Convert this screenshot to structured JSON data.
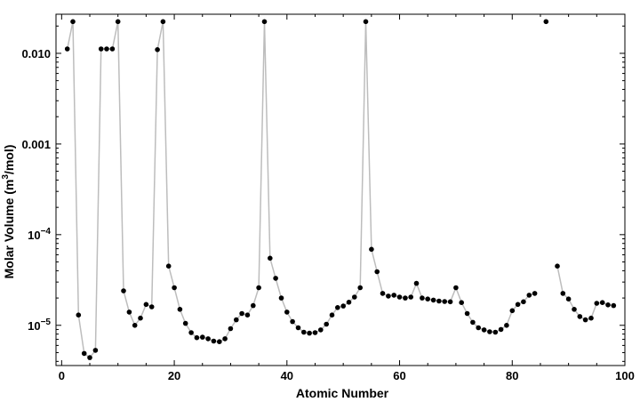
{
  "chart_data": {
    "type": "line",
    "title": "",
    "xlabel": "Atomic Number",
    "ylabel_main": "Molar Volume (m",
    "ylabel_sup": "3",
    "ylabel_end": "/mol)",
    "xlim": [
      -1,
      100
    ],
    "ylim": [
      3.6e-06,
      0.027
    ],
    "yscale": "log",
    "grid": false,
    "legend": "none",
    "x_ticks": [
      {
        "value": 0,
        "label": "0"
      },
      {
        "value": 20,
        "label": "20"
      },
      {
        "value": 40,
        "label": "40"
      },
      {
        "value": 60,
        "label": "60"
      },
      {
        "value": 80,
        "label": "80"
      },
      {
        "value": 100,
        "label": "100"
      }
    ],
    "y_ticks": [
      {
        "value": 1e-05,
        "base": "10",
        "exp": "−5",
        "label": ""
      },
      {
        "value": 0.0001,
        "base": "10",
        "exp": "−4",
        "label": ""
      },
      {
        "value": 0.001,
        "base": "",
        "exp": "",
        "label": "0.001"
      },
      {
        "value": 0.01,
        "base": "",
        "exp": "",
        "label": "0.010"
      }
    ],
    "colors": {
      "line": "#bdbdbd",
      "marker": "#000000",
      "frame": "#000000"
    },
    "series": [
      {
        "x": [
          1,
          2,
          3,
          4,
          5,
          6,
          7,
          8,
          9,
          10,
          11,
          12,
          13,
          14,
          15,
          16,
          17,
          18,
          19,
          20,
          21,
          22,
          23,
          24,
          25,
          26,
          27,
          28,
          29,
          30,
          31,
          32,
          33,
          34,
          35,
          36,
          37,
          38,
          39,
          40,
          41,
          42,
          43,
          44,
          45,
          46,
          47,
          48,
          49,
          50,
          51,
          52,
          53,
          54,
          55,
          56,
          57,
          58,
          59,
          60,
          61,
          62,
          63,
          64,
          65,
          66,
          67,
          68,
          69,
          70,
          71,
          72,
          73,
          74,
          75,
          76,
          77,
          78,
          79,
          80,
          81,
          82,
          83,
          84,
          86,
          88,
          89,
          90,
          91,
          92,
          93,
          94,
          95,
          96,
          97,
          98
        ],
        "y": [
          0.0112,
          0.0224,
          1.3e-05,
          4.9e-06,
          4.4e-06,
          5.3e-06,
          0.0112,
          0.0112,
          0.0112,
          0.0224,
          2.4e-05,
          1.4e-05,
          1e-05,
          1.2e-05,
          1.7e-05,
          1.6e-05,
          0.011,
          0.0224,
          4.5e-05,
          2.6e-05,
          1.5e-05,
          1.05e-05,
          8.3e-06,
          7.3e-06,
          7.4e-06,
          7.1e-06,
          6.7e-06,
          6.6e-06,
          7.1e-06,
          9.2e-06,
          1.15e-05,
          1.35e-05,
          1.3e-05,
          1.65e-05,
          2.6e-05,
          0.0224,
          5.5e-05,
          3.3e-05,
          2e-05,
          1.4e-05,
          1.1e-05,
          9.4e-06,
          8.4e-06,
          8.2e-06,
          8.3e-06,
          8.9e-06,
          1.03e-05,
          1.3e-05,
          1.57e-05,
          1.63e-05,
          1.8e-05,
          2.05e-05,
          2.6e-05,
          0.0224,
          6.9e-05,
          3.9e-05,
          2.25e-05,
          2.1e-05,
          2.15e-05,
          2.05e-05,
          2e-05,
          2.05e-05,
          2.9e-05,
          2e-05,
          1.95e-05,
          1.9e-05,
          1.85e-05,
          1.83e-05,
          1.82e-05,
          2.6e-05,
          1.78e-05,
          1.35e-05,
          1.08e-05,
          9.4e-06,
          8.9e-06,
          8.5e-06,
          8.4e-06,
          9e-06,
          1e-05,
          1.45e-05,
          1.7e-05,
          1.82e-05,
          2.15e-05,
          2.25e-05,
          0.0224,
          4.5e-05,
          2.25e-05,
          1.95e-05,
          1.5e-05,
          1.25e-05,
          1.15e-05,
          1.2e-05,
          1.75e-05,
          1.78e-05,
          1.68e-05,
          1.65e-05
        ]
      }
    ]
  }
}
